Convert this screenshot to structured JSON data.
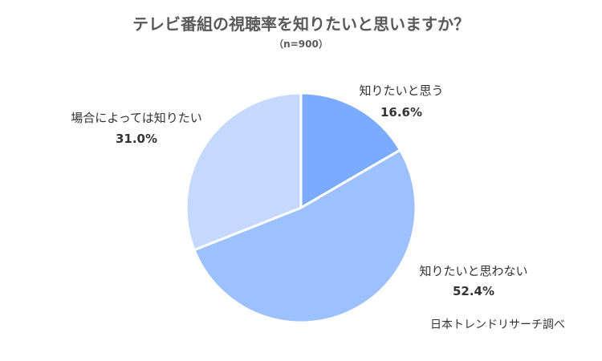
{
  "chart_data": {
    "type": "pie",
    "title": "テレビ番組の視聴率を知りたいと思いますか？",
    "subtitle": "（n=900）",
    "categories": [
      "知りたいと思う",
      "知りたいと思わない",
      "場合によっては知りたい"
    ],
    "values": [
      16.6,
      52.4,
      31.0
    ],
    "value_labels": [
      "16.6%",
      "52.4%",
      "31.0%"
    ],
    "colors": [
      "#7aabff",
      "#9dc0ff",
      "#c5d9ff"
    ],
    "start_angle": "12 o'clock, clockwise",
    "legend": "none (direct labels)"
  },
  "source": "日本トレンドリサーチ調べ"
}
